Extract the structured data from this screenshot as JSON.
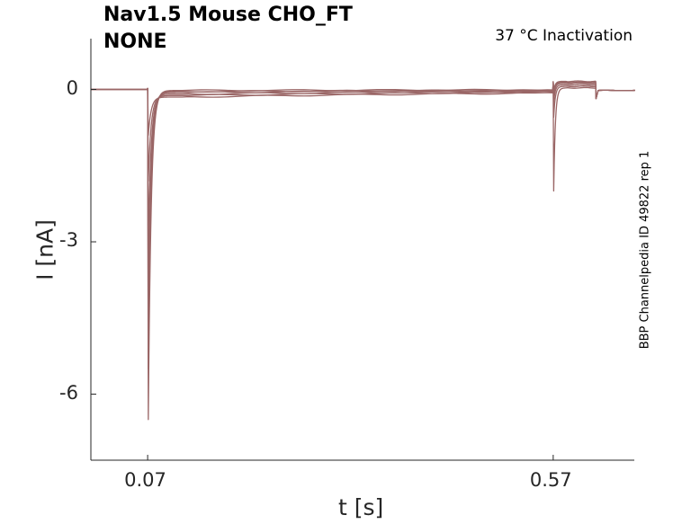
{
  "chart_data": {
    "type": "line",
    "title_line1": "Nav1.5  Mouse  CHO_FT",
    "title_line2": "NONE",
    "condition": "37 °C  Inactivation",
    "side_label": "BBP Channelpedia ID 49822 rep 1",
    "xlabel": "t [s]",
    "ylabel": "I [nA]",
    "xlim": [
      0.0,
      0.67
    ],
    "ylim": [
      -7.3,
      1.0
    ],
    "x_ticks": [
      0.07,
      0.57
    ],
    "x_tick_labels": [
      "0.07",
      "0.57"
    ],
    "y_ticks": [
      0,
      -3,
      -6
    ],
    "y_tick_labels": [
      "0",
      "-3",
      "-6"
    ],
    "grid": false,
    "legend": "none",
    "trace_color": "#9a6666",
    "series": [
      {
        "peak1": -6.5,
        "plateau": -0.02,
        "peak2": -2.0,
        "post2": 0.03
      },
      {
        "peak1": -5.5,
        "plateau": -0.04,
        "peak2": -0.55,
        "post2": 0.06
      },
      {
        "peak1": -4.2,
        "plateau": -0.06,
        "peak2": -0.25,
        "post2": 0.09
      },
      {
        "peak1": -3.0,
        "plateau": -0.09,
        "peak2": -0.12,
        "post2": 0.12
      },
      {
        "peak1": -1.8,
        "plateau": -0.12,
        "peak2": -0.05,
        "post2": 0.14
      },
      {
        "peak1": -0.9,
        "plateau": -0.15,
        "peak2": -0.02,
        "post2": 0.16
      }
    ]
  }
}
